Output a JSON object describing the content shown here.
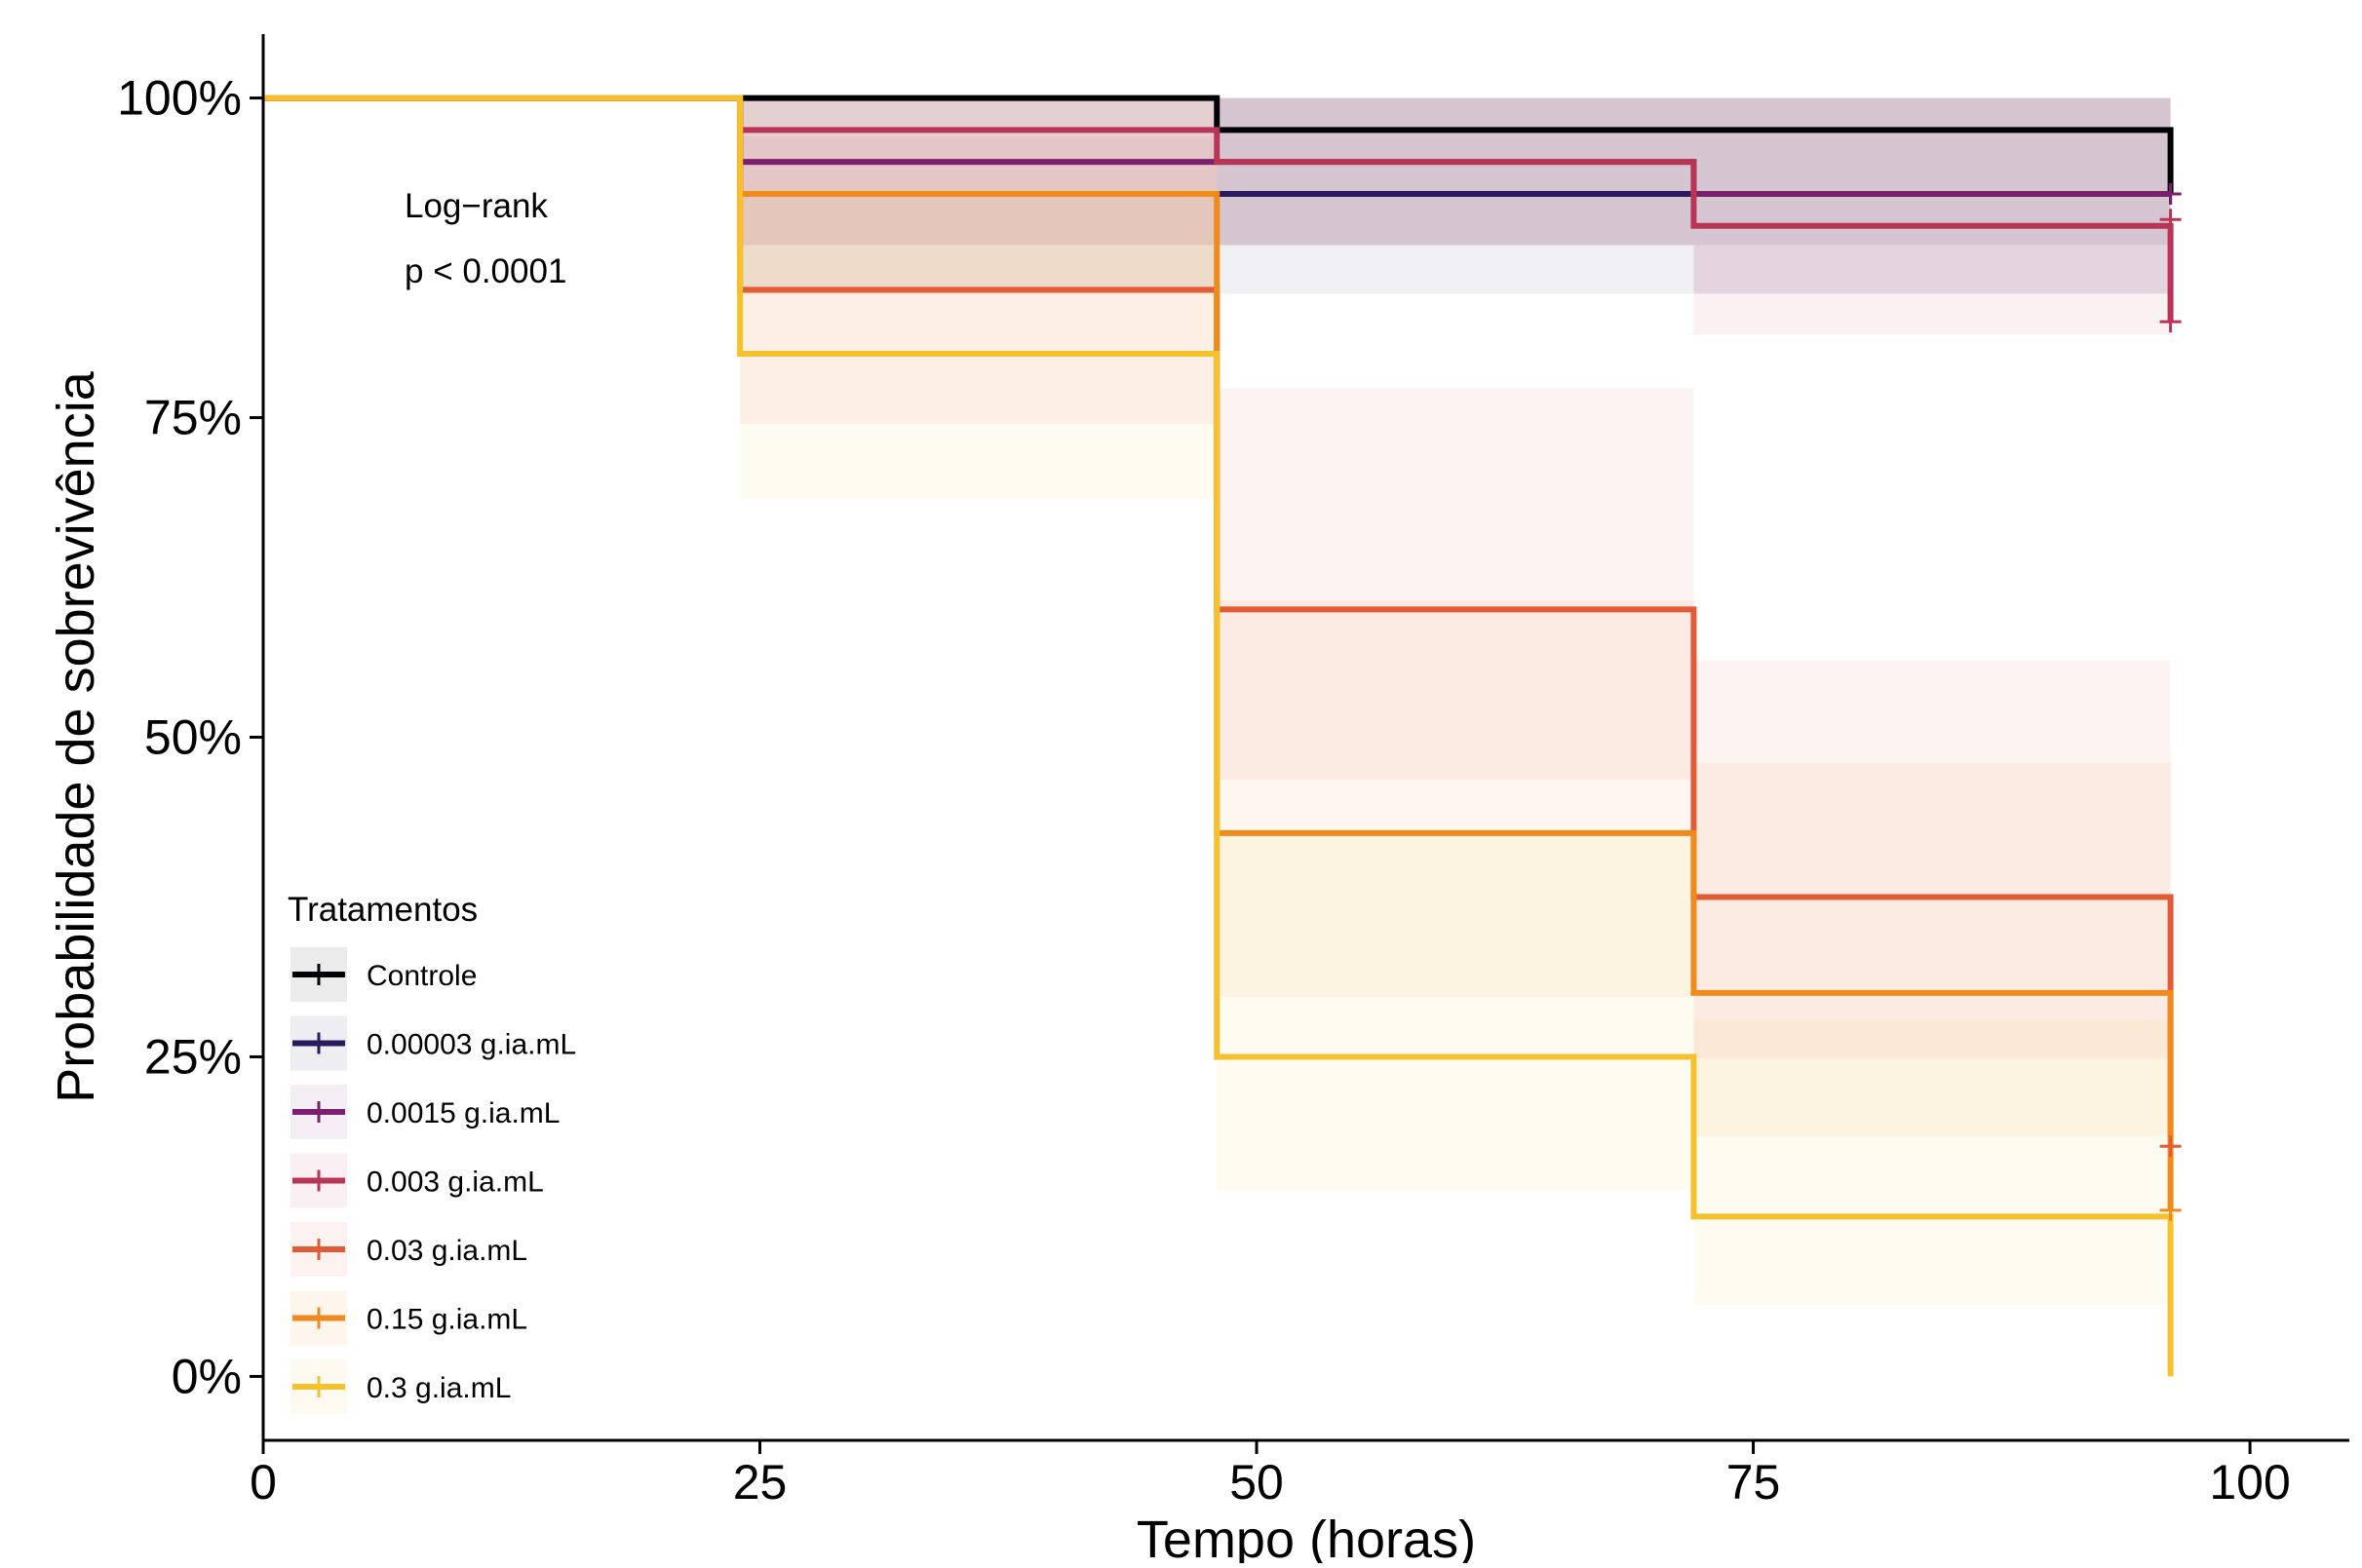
{
  "chart_data": {
    "type": "line",
    "subtype": "kaplan-meier step",
    "xlabel": "Tempo (horas)",
    "ylabel": "Probabilidade de sobrevivência",
    "xlim": [
      0,
      105
    ],
    "ylim": [
      -0.05,
      1.05
    ],
    "x_ticks": [
      0,
      25,
      50,
      75,
      100
    ],
    "x_tick_labels": [
      "0",
      "25",
      "50",
      "75",
      "100"
    ],
    "y_ticks": [
      0,
      0.25,
      0.5,
      0.75,
      1
    ],
    "y_tick_labels": [
      "0%",
      "25%",
      "50%",
      "75%",
      "100%"
    ],
    "grid": false,
    "annotation": {
      "lines": [
        "Log−rank",
        "p < 0.0001"
      ]
    },
    "legend": {
      "title": "Tratamentos",
      "placement": "bottom-left"
    },
    "series": [
      {
        "name": "Controle",
        "color": "#000004",
        "steps": [
          [
            0,
            1.0
          ],
          [
            48,
            0.975
          ],
          [
            96,
            0.925
          ]
        ],
        "ci": [
          [
            0,
            1.0,
            1.0
          ],
          [
            48,
            0.885,
            1.0
          ],
          [
            96,
            0.885,
            1.0
          ]
        ],
        "censor": [
          [
            96,
            0.925
          ]
        ]
      },
      {
        "name": "0.00003 g.ia.mL",
        "color": "#2b1a5e",
        "steps": [
          [
            0,
            1.0
          ],
          [
            24,
            0.925
          ]
        ],
        "ci": [
          [
            0,
            1.0,
            1.0
          ],
          [
            24,
            0.847,
            1.0
          ]
        ],
        "censor": [
          [
            96,
            0.925
          ]
        ]
      },
      {
        "name": "0.0015 g.ia.mL",
        "color": "#7c1f6e",
        "steps": [
          [
            0,
            1.0
          ],
          [
            24,
            0.95
          ],
          [
            72,
            0.925
          ]
        ],
        "ci": [
          [
            0,
            1.0,
            1.0
          ],
          [
            24,
            0.885,
            1.0
          ],
          [
            72,
            0.847,
            1.0
          ]
        ],
        "censor": [
          [
            96,
            0.925
          ]
        ]
      },
      {
        "name": "0.003 g.ia.mL",
        "color": "#b93556",
        "steps": [
          [
            0,
            1.0
          ],
          [
            24,
            0.975
          ],
          [
            48,
            0.95
          ],
          [
            72,
            0.9
          ],
          [
            96,
            0.825
          ]
        ],
        "ci": [
          [
            0,
            1.0,
            1.0
          ],
          [
            24,
            0.885,
            1.0
          ],
          [
            48,
            0.885,
            1.0
          ],
          [
            72,
            0.815,
            1.0
          ],
          [
            96,
            0.815,
            1.0
          ]
        ],
        "censor": [
          [
            96,
            0.905
          ],
          [
            96,
            0.825
          ]
        ]
      },
      {
        "name": "0.03 g.ia.mL",
        "color": "#e05b36",
        "steps": [
          [
            0,
            1.0
          ],
          [
            24,
            0.85
          ],
          [
            48,
            0.6
          ],
          [
            72,
            0.375
          ],
          [
            96,
            0.18
          ]
        ],
        "ci": [
          [
            0,
            1.0,
            1.0
          ],
          [
            24,
            0.745,
            0.97
          ],
          [
            48,
            0.467,
            0.773
          ],
          [
            72,
            0.249,
            0.56
          ],
          [
            96,
            0.18,
            0.56
          ]
        ],
        "censor": [
          [
            96,
            0.18
          ]
        ]
      },
      {
        "name": "0.15 g.ia.mL",
        "color": "#ee8a1e",
        "steps": [
          [
            0,
            1.0
          ],
          [
            24,
            0.925
          ],
          [
            48,
            0.425
          ],
          [
            72,
            0.3
          ],
          [
            96,
            0.13
          ]
        ],
        "ci": [
          [
            0,
            1.0,
            1.0
          ],
          [
            24,
            0.847,
            1.0
          ],
          [
            48,
            0.297,
            0.607
          ],
          [
            72,
            0.188,
            0.48
          ],
          [
            96,
            0.13,
            0.48
          ]
        ],
        "censor": [
          [
            96,
            0.13
          ]
        ]
      },
      {
        "name": "0.3 g.ia.mL",
        "color": "#f6c12f",
        "steps": [
          [
            0,
            1.0
          ],
          [
            24,
            0.8
          ],
          [
            48,
            0.25
          ],
          [
            72,
            0.125
          ],
          [
            96,
            0.0
          ]
        ],
        "ci": [
          [
            0,
            1.0,
            1.0
          ],
          [
            24,
            0.686,
            0.932
          ],
          [
            48,
            0.146,
            0.428
          ],
          [
            72,
            0.056,
            0.279
          ],
          [
            96,
            0.056,
            0.279
          ]
        ],
        "censor": []
      }
    ]
  }
}
